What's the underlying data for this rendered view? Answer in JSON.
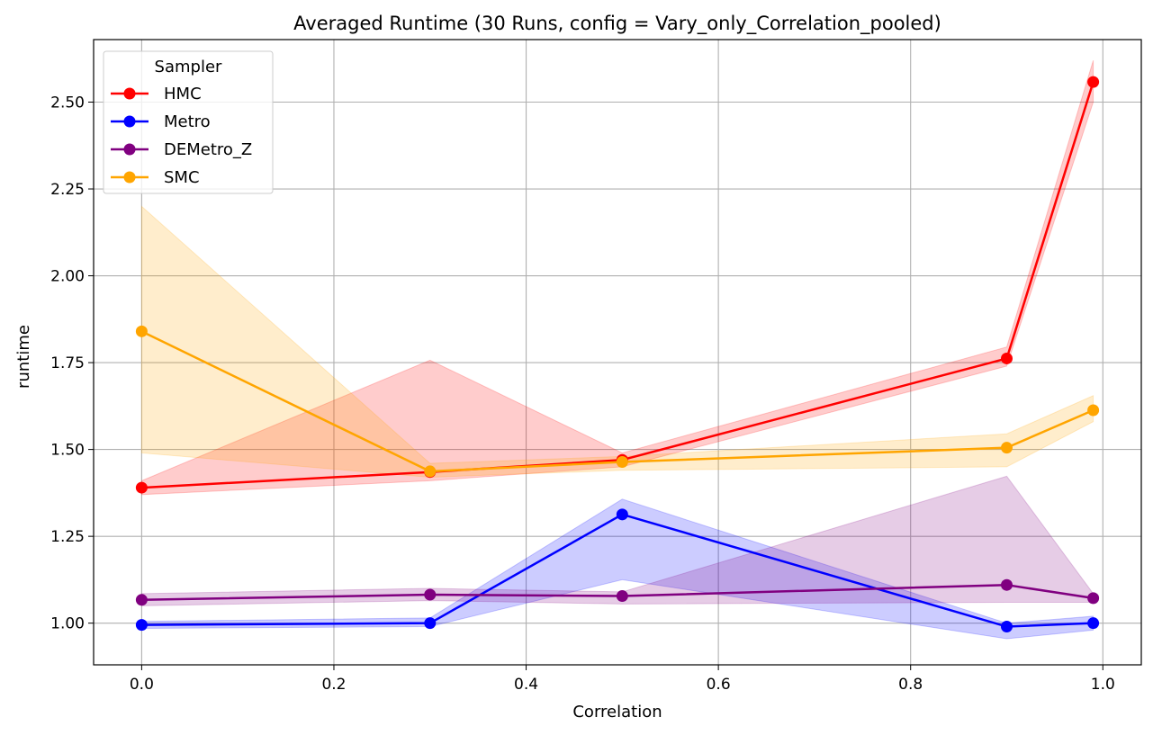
{
  "chart_data": {
    "type": "line",
    "title": "Averaged Runtime (30 Runs, config = Vary_only_Correlation_pooled)",
    "xlabel": "Correlation",
    "ylabel": "runtime",
    "xlim": [
      -0.05,
      1.04
    ],
    "ylim": [
      0.88,
      2.68
    ],
    "xticks": [
      "0.0",
      "0.2",
      "0.4",
      "0.6",
      "0.8",
      "1.0"
    ],
    "xtick_values": [
      0.0,
      0.2,
      0.4,
      0.6,
      0.8,
      1.0
    ],
    "yticks": [
      "1.00",
      "1.25",
      "1.50",
      "1.75",
      "2.00",
      "2.25",
      "2.50"
    ],
    "ytick_values": [
      1.0,
      1.25,
      1.5,
      1.75,
      2.0,
      2.25,
      2.5
    ],
    "grid": true,
    "legend": {
      "title": "Sampler",
      "position": "top-left"
    },
    "x": [
      0.0,
      0.3,
      0.5,
      0.9,
      0.99
    ],
    "series": [
      {
        "name": "HMC",
        "color": "#ff0000",
        "values": [
          1.39,
          1.435,
          1.47,
          1.762,
          2.558
        ],
        "lower": [
          1.37,
          1.41,
          1.45,
          1.74,
          2.5
        ],
        "upper": [
          1.41,
          1.757,
          1.49,
          1.795,
          2.62
        ]
      },
      {
        "name": "Metro",
        "color": "#0000ff",
        "values": [
          0.995,
          1.0,
          1.313,
          0.99,
          1.0
        ],
        "lower": [
          0.985,
          0.99,
          1.125,
          0.955,
          0.98
        ],
        "upper": [
          1.005,
          1.015,
          1.357,
          1.0,
          1.02
        ]
      },
      {
        "name": "DEMetro_Z",
        "color": "#800080",
        "values": [
          1.067,
          1.082,
          1.078,
          1.11,
          1.072
        ],
        "lower": [
          1.05,
          1.065,
          1.055,
          1.06,
          1.06
        ],
        "upper": [
          1.085,
          1.1,
          1.09,
          1.423,
          1.085
        ]
      },
      {
        "name": "SMC",
        "color": "#ffa500",
        "values": [
          1.84,
          1.437,
          1.464,
          1.505,
          1.613
        ],
        "lower": [
          1.49,
          1.42,
          1.44,
          1.45,
          1.58
        ],
        "upper": [
          2.2,
          1.46,
          1.48,
          1.545,
          1.655
        ]
      }
    ]
  }
}
